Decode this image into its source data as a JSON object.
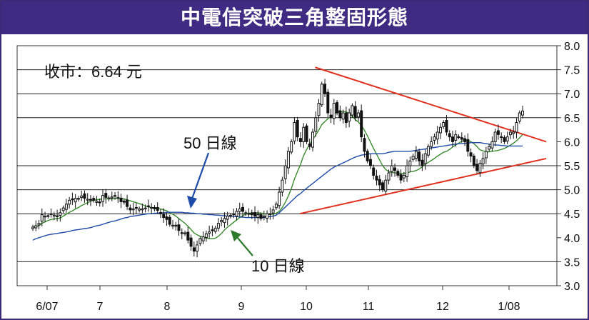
{
  "title": "中電信突破三角整固形態",
  "chart_data": {
    "type": "candlestick",
    "title": "中電信突破三角整固形態",
    "y_ticks": [
      "8.0",
      "7.5",
      "7.0",
      "6.5",
      "6.0",
      "5.5",
      "5.0",
      "4.5",
      "4.0",
      "3.5",
      "3.0"
    ],
    "ylim": [
      3.0,
      8.0
    ],
    "x_ticks": [
      "6/07",
      "7",
      "8",
      "9",
      "10",
      "11",
      "12",
      "1/08"
    ],
    "close_label": "收市：6.64 元",
    "annotations": {
      "ma50": "50 日線",
      "ma10": "10 日線"
    },
    "grid_lines": [
      3.5,
      4.5,
      5.0,
      5.5,
      6.5,
      7.0,
      7.5
    ],
    "series": [
      {
        "name": "收市價",
        "key": "close",
        "values": [
          4.22,
          4.25,
          4.3,
          4.48,
          4.45,
          4.46,
          4.5,
          4.47,
          4.45,
          4.52,
          4.62,
          4.7,
          4.78,
          4.79,
          4.82,
          4.82,
          4.87,
          4.82,
          4.8,
          4.79,
          4.78,
          4.76,
          4.74,
          4.88,
          4.84,
          4.83,
          4.85,
          4.88,
          4.84,
          4.75,
          4.74,
          4.65,
          4.58,
          4.6,
          4.62,
          4.6,
          4.6,
          4.62,
          4.65,
          4.63,
          4.6,
          4.57,
          4.5,
          4.42,
          4.38,
          4.28,
          4.26,
          4.24,
          4.15,
          4.1,
          4.1,
          3.95,
          3.82,
          3.72,
          3.85,
          3.98,
          4.02,
          4.08,
          4.12,
          4.16,
          4.2,
          4.3,
          4.36,
          4.4,
          4.45,
          4.45,
          4.48,
          4.55,
          4.6,
          4.55,
          4.52,
          4.5,
          4.48,
          4.45,
          4.48,
          4.4,
          4.45,
          4.5,
          4.5,
          4.58,
          4.7,
          4.95,
          5.2,
          5.5,
          5.8,
          6.0,
          6.4,
          6.1,
          6.0,
          6.3,
          6.0,
          5.9,
          6.2,
          6.5,
          6.8,
          7.2,
          7.0,
          6.6,
          6.5,
          6.8,
          6.6,
          6.5,
          6.6,
          6.4,
          6.6,
          6.75,
          6.5,
          6.6,
          6.1,
          5.8,
          5.6,
          5.5,
          5.3,
          5.2,
          5.1,
          5.0,
          5.2,
          5.35,
          5.5,
          5.4,
          5.3,
          5.2,
          5.3,
          5.5,
          5.6,
          5.7,
          5.8,
          5.6,
          5.5,
          5.75,
          5.9,
          6.0,
          6.1,
          6.2,
          6.3,
          6.4,
          6.2,
          6.1,
          6.0,
          6.15,
          6.1,
          6.05,
          6.0,
          5.8,
          5.7,
          5.5,
          5.4,
          5.55,
          5.65,
          5.8,
          5.9,
          6.0,
          6.2,
          6.15,
          6.1,
          6.0,
          6.1,
          6.2,
          6.2,
          6.4,
          6.6,
          6.64
        ]
      },
      {
        "name": "10 日線",
        "key": "ma10",
        "values": [
          4.22,
          4.23,
          4.25,
          4.3,
          4.33,
          4.36,
          4.38,
          4.39,
          4.4,
          4.41,
          4.45,
          4.49,
          4.53,
          4.56,
          4.6,
          4.63,
          4.67,
          4.7,
          4.73,
          4.76,
          4.78,
          4.79,
          4.8,
          4.81,
          4.81,
          4.81,
          4.81,
          4.82,
          4.82,
          4.82,
          4.81,
          4.79,
          4.77,
          4.75,
          4.73,
          4.71,
          4.69,
          4.66,
          4.64,
          4.63,
          4.62,
          4.61,
          4.6,
          4.58,
          4.56,
          4.52,
          4.49,
          4.45,
          4.4,
          4.35,
          4.3,
          4.24,
          4.17,
          4.1,
          4.06,
          4.03,
          4.01,
          3.99,
          3.98,
          3.98,
          3.99,
          4.03,
          4.09,
          4.16,
          4.22,
          4.27,
          4.32,
          4.37,
          4.42,
          4.46,
          4.49,
          4.51,
          4.52,
          4.52,
          4.52,
          4.51,
          4.5,
          4.5,
          4.49,
          4.49,
          4.51,
          4.55,
          4.63,
          4.74,
          4.87,
          5.03,
          5.22,
          5.38,
          5.53,
          5.71,
          5.84,
          5.94,
          6.04,
          6.14,
          6.24,
          6.36,
          6.42,
          6.48,
          6.52,
          6.57,
          6.62,
          6.63,
          6.63,
          6.62,
          6.59,
          6.53,
          6.46,
          6.41,
          6.34,
          6.24,
          6.12,
          5.99,
          5.86,
          5.74,
          5.62,
          5.5,
          5.42,
          5.38,
          5.36,
          5.35,
          5.35,
          5.34,
          5.34,
          5.35,
          5.37,
          5.38,
          5.4,
          5.43,
          5.48,
          5.53,
          5.57,
          5.61,
          5.65,
          5.7,
          5.74,
          5.78,
          5.8,
          5.84,
          5.89,
          5.93,
          5.97,
          6.01,
          6.03,
          6.03,
          6.0,
          5.96,
          5.9,
          5.83,
          5.81,
          5.79,
          5.79,
          5.8,
          5.81,
          5.82,
          5.84,
          5.86,
          5.89,
          5.93,
          5.97,
          6.02,
          6.08,
          6.15
        ]
      },
      {
        "name": "50 日線",
        "key": "ma50",
        "values": [
          3.95,
          3.98,
          4.0,
          4.02,
          4.04,
          4.06,
          4.07,
          4.08,
          4.09,
          4.1,
          4.11,
          4.12,
          4.13,
          4.15,
          4.16,
          4.17,
          4.18,
          4.19,
          4.2,
          4.21,
          4.23,
          4.25,
          4.26,
          4.28,
          4.3,
          4.32,
          4.34,
          4.35,
          4.37,
          4.39,
          4.41,
          4.42,
          4.44,
          4.45,
          4.46,
          4.47,
          4.48,
          4.49,
          4.5,
          4.5,
          4.51,
          4.51,
          4.52,
          4.52,
          4.53,
          4.53,
          4.53,
          4.53,
          4.53,
          4.53,
          4.52,
          4.52,
          4.51,
          4.51,
          4.5,
          4.5,
          4.49,
          4.49,
          4.48,
          4.48,
          4.47,
          4.47,
          4.46,
          4.46,
          4.45,
          4.45,
          4.44,
          4.44,
          4.43,
          4.43,
          4.42,
          4.42,
          4.42,
          4.42,
          4.42,
          4.42,
          4.42,
          4.43,
          4.44,
          4.45,
          4.47,
          4.52,
          4.58,
          4.64,
          4.7,
          4.76,
          4.82,
          4.88,
          4.92,
          4.98,
          5.03,
          5.08,
          5.13,
          5.18,
          5.23,
          5.28,
          5.33,
          5.38,
          5.43,
          5.47,
          5.5,
          5.53,
          5.56,
          5.59,
          5.62,
          5.65,
          5.68,
          5.7,
          5.72,
          5.73,
          5.74,
          5.75,
          5.75,
          5.75,
          5.75,
          5.75,
          5.76,
          5.78,
          5.79,
          5.8,
          5.8,
          5.8,
          5.8,
          5.8,
          5.8,
          5.81,
          5.82,
          5.83,
          5.84,
          5.85,
          5.86,
          5.87,
          5.88,
          5.89,
          5.9,
          5.91,
          5.92,
          5.93,
          5.94,
          5.95,
          5.96,
          5.96,
          5.97,
          5.97,
          5.98,
          5.98,
          5.98,
          5.98,
          5.97,
          5.96,
          5.95,
          5.94,
          5.93,
          5.93,
          5.92,
          5.92,
          5.91,
          5.91,
          5.91,
          5.91,
          5.91,
          5.91
        ]
      }
    ],
    "trendlines": [
      {
        "name": "upper",
        "from": [
          0.55,
          7.55
        ],
        "to": [
          1.0,
          6.0
        ]
      },
      {
        "name": "lower",
        "from": [
          0.52,
          4.5
        ],
        "to": [
          1.0,
          5.65
        ]
      }
    ],
    "colors": {
      "banner": "#3f2c82",
      "frame": "#3b2a78",
      "ma10": "#3a8a2e",
      "ma50": "#1f4ba8",
      "trend": "#e0301e",
      "arrow50": "#1f4ba8",
      "arrow10": "#2d7a2a",
      "candle": "#111111"
    }
  }
}
